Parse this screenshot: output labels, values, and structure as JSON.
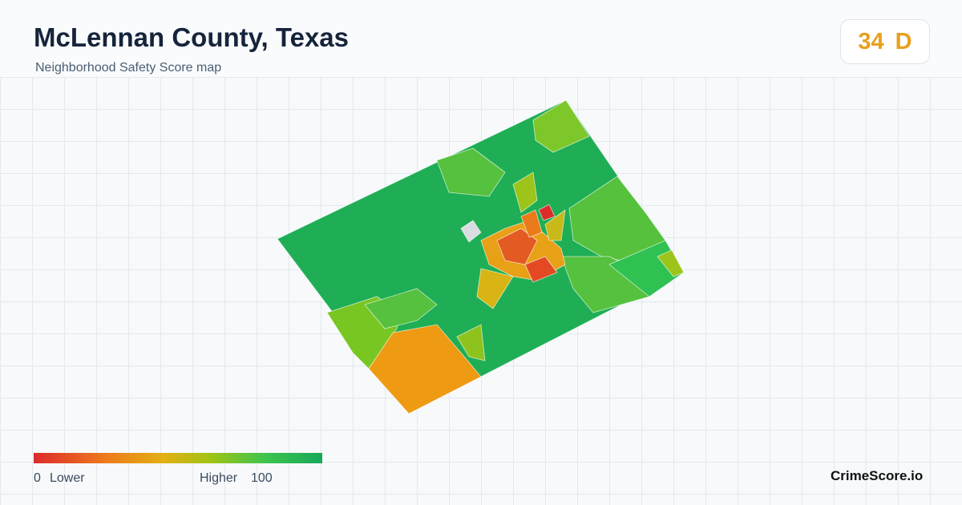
{
  "header": {
    "title": "McLennan County, Texas",
    "subtitle": "Neighborhood Safety Score map"
  },
  "score": {
    "value": "34",
    "grade": "D"
  },
  "legend": {
    "min": "0",
    "min_label": "Lower",
    "max_label": "Higher",
    "max": "100"
  },
  "brand": "CrimeScore.io"
}
